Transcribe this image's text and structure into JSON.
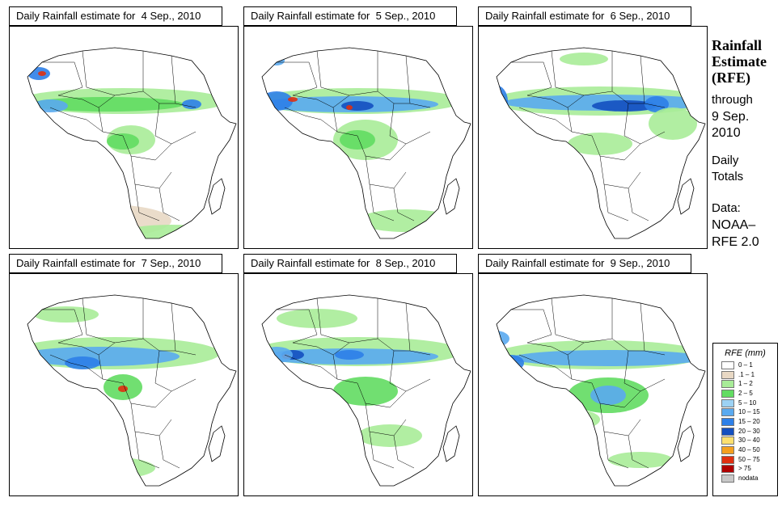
{
  "panels": [
    {
      "title": "Daily Rainfall estimate for  4 Sep., 2010"
    },
    {
      "title": "Daily Rainfall estimate for  5 Sep., 2010"
    },
    {
      "title": "Daily Rainfall estimate for  6 Sep., 2010"
    },
    {
      "title": "Daily Rainfall estimate for  7 Sep., 2010"
    },
    {
      "title": "Daily Rainfall estimate for  8 Sep., 2010"
    },
    {
      "title": "Daily Rainfall estimate for  9 Sep., 2010"
    }
  ],
  "side": {
    "title_line1": "Rainfall",
    "title_line2": "Estimate",
    "title_line3": "(RFE)",
    "through_label": "through",
    "date_line1": "9 Sep.",
    "date_line2": "2010",
    "daily_line1": "Daily",
    "daily_line2": "Totals",
    "data_label": "Data:",
    "source_line1": "NOAA–",
    "source_line2": "RFE 2.0"
  },
  "legend": {
    "title": "RFE (mm)",
    "items": [
      {
        "label": "0 – 1",
        "color": "#ffffff"
      },
      {
        "label": ".1 – 1",
        "color": "#e8d8c4"
      },
      {
        "label": "1 – 2",
        "color": "#a8ec98"
      },
      {
        "label": "2 – 5",
        "color": "#62dc62"
      },
      {
        "label": "5 – 10",
        "color": "#9cd2f4"
      },
      {
        "label": "10 – 15",
        "color": "#5aaaf0"
      },
      {
        "label": "15 – 20",
        "color": "#2e80e8"
      },
      {
        "label": "20 – 30",
        "color": "#1450c0"
      },
      {
        "label": "30 – 40",
        "color": "#fce070"
      },
      {
        "label": "40 – 50",
        "color": "#f4a020"
      },
      {
        "label": "50 – 75",
        "color": "#e03010"
      },
      {
        "label": "> 75",
        "color": "#b00000"
      },
      {
        "label": "nodata",
        "color": "#c8c8c8"
      }
    ]
  }
}
